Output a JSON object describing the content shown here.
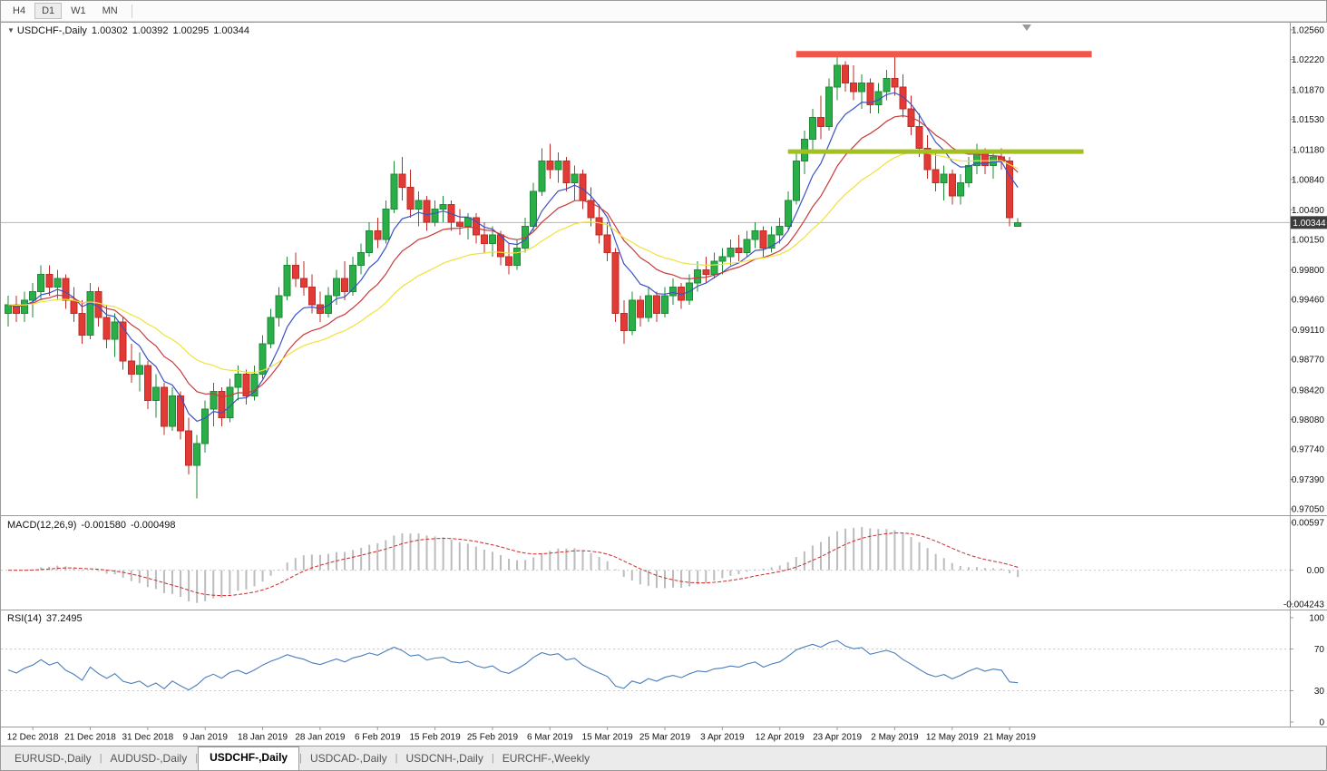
{
  "toolbar": {
    "buttons": [
      {
        "label": "H4",
        "active": false
      },
      {
        "label": "D1",
        "active": true
      },
      {
        "label": "W1",
        "active": false
      },
      {
        "label": "MN",
        "active": false
      }
    ]
  },
  "chart_header": {
    "marker": "▼",
    "symbol": "USDCHF-,Daily",
    "open": "1.00302",
    "high": "1.00392",
    "low": "1.00295",
    "close": "1.00344"
  },
  "indicators": {
    "macd": {
      "name": "MACD(12,26,9)",
      "main_value": "-0.001580",
      "signal_value": "-0.000498"
    },
    "rsi": {
      "name": "RSI(14)",
      "value": "37.2495"
    }
  },
  "tabs": [
    {
      "label": "EURUSD-,Daily",
      "active": false
    },
    {
      "label": "AUDUSD-,Daily",
      "active": false
    },
    {
      "label": "USDCHF-,Daily",
      "active": true
    },
    {
      "label": "USDCAD-,Daily",
      "active": false
    },
    {
      "label": "USDCNH-,Daily",
      "active": false
    },
    {
      "label": "EURCHF-,Weekly",
      "active": false
    }
  ],
  "chart_data": {
    "type": "candlestick",
    "symbol": "USDCHF",
    "timeframe": "Daily",
    "price_axis": {
      "min": 0.9702,
      "max": 1.0259,
      "labels": [
        "1.02560",
        "1.02220",
        "1.01870",
        "1.01530",
        "1.01180",
        "1.00840",
        "1.00490",
        "1.00150",
        "0.99800",
        "0.99460",
        "0.99110",
        "0.98770",
        "0.98420",
        "0.98080",
        "0.97740",
        "0.97390",
        "0.97050"
      ]
    },
    "date_axis": {
      "first_index": 3,
      "step": 7,
      "labels": [
        "12 Dec 2018",
        "21 Dec 2018",
        "31 Dec 2018",
        "9 Jan 2019",
        "18 Jan 2019",
        "28 Jan 2019",
        "6 Feb 2019",
        "15 Feb 2019",
        "25 Feb 2019",
        "6 Mar 2019",
        "15 Mar 2019",
        "25 Mar 2019",
        "3 Apr 2019",
        "12 Apr 2019",
        "23 Apr 2019",
        "2 May 2019",
        "12 May 2019",
        "21 May 2019"
      ]
    },
    "ohlc": [
      [
        0.993,
        0.995,
        0.9915,
        0.994
      ],
      [
        0.994,
        0.995,
        0.992,
        0.993
      ],
      [
        0.993,
        0.9955,
        0.992,
        0.9945
      ],
      [
        0.9945,
        0.9965,
        0.9925,
        0.9955
      ],
      [
        0.9955,
        0.9985,
        0.9945,
        0.9975
      ],
      [
        0.9975,
        0.9985,
        0.995,
        0.996
      ],
      [
        0.996,
        0.998,
        0.9945,
        0.997
      ],
      [
        0.997,
        0.9975,
        0.9935,
        0.9945
      ],
      [
        0.9945,
        0.996,
        0.992,
        0.993
      ],
      [
        0.993,
        0.9945,
        0.9895,
        0.9905
      ],
      [
        0.9905,
        0.9965,
        0.99,
        0.9955
      ],
      [
        0.9955,
        0.996,
        0.9915,
        0.9925
      ],
      [
        0.9925,
        0.994,
        0.989,
        0.99
      ],
      [
        0.99,
        0.993,
        0.988,
        0.992
      ],
      [
        0.992,
        0.9925,
        0.9865,
        0.9875
      ],
      [
        0.9875,
        0.9895,
        0.985,
        0.986
      ],
      [
        0.986,
        0.9885,
        0.984,
        0.987
      ],
      [
        0.987,
        0.9875,
        0.982,
        0.983
      ],
      [
        0.983,
        0.986,
        0.981,
        0.9845
      ],
      [
        0.9845,
        0.985,
        0.979,
        0.98
      ],
      [
        0.98,
        0.9845,
        0.9795,
        0.9835
      ],
      [
        0.9835,
        0.984,
        0.9785,
        0.9795
      ],
      [
        0.9795,
        0.981,
        0.9745,
        0.9755
      ],
      [
        0.9755,
        0.979,
        0.9717,
        0.978
      ],
      [
        0.978,
        0.983,
        0.977,
        0.982
      ],
      [
        0.982,
        0.985,
        0.98,
        0.984
      ],
      [
        0.984,
        0.9845,
        0.98,
        0.981
      ],
      [
        0.981,
        0.9855,
        0.9805,
        0.9845
      ],
      [
        0.9845,
        0.987,
        0.983,
        0.986
      ],
      [
        0.986,
        0.9865,
        0.9825,
        0.9835
      ],
      [
        0.9835,
        0.987,
        0.983,
        0.986
      ],
      [
        0.986,
        0.9905,
        0.9855,
        0.9895
      ],
      [
        0.9895,
        0.9935,
        0.989,
        0.9925
      ],
      [
        0.9925,
        0.996,
        0.9915,
        0.995
      ],
      [
        0.995,
        0.9995,
        0.9945,
        0.9985
      ],
      [
        0.9985,
        1.0,
        0.996,
        0.997
      ],
      [
        0.997,
        0.999,
        0.995,
        0.996
      ],
      [
        0.996,
        0.9975,
        0.993,
        0.994
      ],
      [
        0.994,
        0.9955,
        0.992,
        0.993
      ],
      [
        0.993,
        0.996,
        0.9925,
        0.995
      ],
      [
        0.995,
        0.998,
        0.994,
        0.997
      ],
      [
        0.997,
        0.999,
        0.9945,
        0.9955
      ],
      [
        0.9955,
        0.9995,
        0.995,
        0.9985
      ],
      [
        0.9985,
        1.001,
        0.9975,
        1.0
      ],
      [
        1.0,
        1.0035,
        0.9995,
        1.0025
      ],
      [
        1.0025,
        1.004,
        1.0005,
        1.0015
      ],
      [
        1.0015,
        1.006,
        1.001,
        1.005
      ],
      [
        1.005,
        1.0105,
        1.0045,
        1.009
      ],
      [
        1.009,
        1.011,
        1.006,
        1.0075
      ],
      [
        1.0075,
        1.0095,
        1.004,
        1.005
      ],
      [
        1.005,
        1.007,
        1.003,
        1.006
      ],
      [
        1.006,
        1.0065,
        1.0025,
        1.0035
      ],
      [
        1.0035,
        1.006,
        1.003,
        1.005
      ],
      [
        1.005,
        1.0065,
        1.0035,
        1.0055
      ],
      [
        1.0055,
        1.006,
        1.0025,
        1.0035
      ],
      [
        1.0035,
        1.005,
        1.002,
        1.003
      ],
      [
        1.003,
        1.0045,
        1.0015,
        1.004
      ],
      [
        1.004,
        1.0045,
        1.001,
        1.002
      ],
      [
        1.002,
        1.0035,
        1.0,
        1.001
      ],
      [
        1.001,
        1.003,
        0.9995,
        1.002
      ],
      [
        1.002,
        1.0025,
        0.9985,
        0.9995
      ],
      [
        0.9995,
        1.001,
        0.9975,
        0.9985
      ],
      [
        0.9985,
        1.0015,
        0.998,
        1.0005
      ],
      [
        1.0005,
        1.004,
        1.0,
        1.003
      ],
      [
        1.003,
        1.008,
        1.0025,
        1.007
      ],
      [
        1.007,
        1.012,
        1.0065,
        1.0105
      ],
      [
        1.0105,
        1.0125,
        1.0085,
        1.0095
      ],
      [
        1.0095,
        1.0115,
        1.008,
        1.0105
      ],
      [
        1.0105,
        1.011,
        1.007,
        1.008
      ],
      [
        1.008,
        1.01,
        1.006,
        1.009
      ],
      [
        1.009,
        1.0095,
        1.005,
        1.006
      ],
      [
        1.006,
        1.0075,
        1.003,
        1.004
      ],
      [
        1.004,
        1.0055,
        1.001,
        1.002
      ],
      [
        1.002,
        1.0035,
        0.999,
        1.0
      ],
      [
        1.0,
        1.0005,
        0.992,
        0.993
      ],
      [
        0.993,
        0.9945,
        0.9895,
        0.991
      ],
      [
        0.991,
        0.9955,
        0.9905,
        0.9945
      ],
      [
        0.9945,
        0.995,
        0.9915,
        0.9925
      ],
      [
        0.9925,
        0.996,
        0.992,
        0.995
      ],
      [
        0.995,
        0.9955,
        0.992,
        0.993
      ],
      [
        0.993,
        0.996,
        0.9925,
        0.995
      ],
      [
        0.995,
        0.997,
        0.994,
        0.996
      ],
      [
        0.996,
        0.9965,
        0.9935,
        0.9945
      ],
      [
        0.9945,
        0.9975,
        0.994,
        0.9965
      ],
      [
        0.9965,
        0.999,
        0.9955,
        0.998
      ],
      [
        0.998,
        0.9995,
        0.9965,
        0.9975
      ],
      [
        0.9975,
        1.0,
        0.997,
        0.999
      ],
      [
        0.999,
        1.0005,
        0.9975,
        0.9995
      ],
      [
        0.9995,
        1.0015,
        0.9985,
        1.0005
      ],
      [
        1.0005,
        1.002,
        0.999,
        1.0
      ],
      [
        1.0,
        1.0025,
        0.9995,
        1.0015
      ],
      [
        1.0015,
        1.0035,
        1.0005,
        1.0025
      ],
      [
        1.0025,
        1.003,
        0.9995,
        1.0005
      ],
      [
        1.0005,
        1.003,
        1.0,
        1.002
      ],
      [
        1.002,
        1.004,
        1.001,
        1.003
      ],
      [
        1.003,
        1.007,
        1.0025,
        1.006
      ],
      [
        1.006,
        1.0115,
        1.0055,
        1.0105
      ],
      [
        1.0105,
        1.014,
        1.009,
        1.013
      ],
      [
        1.013,
        1.0165,
        1.0115,
        1.0155
      ],
      [
        1.0155,
        1.018,
        1.013,
        1.0145
      ],
      [
        1.0145,
        1.02,
        1.014,
        1.019
      ],
      [
        1.019,
        1.0225,
        1.0175,
        1.0215
      ],
      [
        1.0215,
        1.022,
        1.0185,
        1.0195
      ],
      [
        1.0195,
        1.0215,
        1.0175,
        1.0185
      ],
      [
        1.0185,
        1.0205,
        1.0165,
        1.0195
      ],
      [
        1.0195,
        1.02,
        1.016,
        1.017
      ],
      [
        1.017,
        1.0195,
        1.016,
        1.0185
      ],
      [
        1.0185,
        1.021,
        1.0175,
        1.02
      ],
      [
        1.02,
        1.0225,
        1.018,
        1.019
      ],
      [
        1.019,
        1.0205,
        1.0155,
        1.0165
      ],
      [
        1.0165,
        1.018,
        1.0135,
        1.0145
      ],
      [
        1.0145,
        1.016,
        1.011,
        1.012
      ],
      [
        1.012,
        1.0135,
        1.0085,
        1.0095
      ],
      [
        1.0095,
        1.0115,
        1.007,
        1.008
      ],
      [
        1.008,
        1.01,
        1.006,
        1.009
      ],
      [
        1.009,
        1.0095,
        1.0055,
        1.0065
      ],
      [
        1.0065,
        1.009,
        1.0055,
        1.008
      ],
      [
        1.008,
        1.011,
        1.0075,
        1.01
      ],
      [
        1.01,
        1.0125,
        1.009,
        1.0115
      ],
      [
        1.0115,
        1.012,
        1.009,
        1.01
      ],
      [
        1.01,
        1.0115,
        1.0085,
        1.011
      ],
      [
        1.011,
        1.012,
        1.0095,
        1.0105
      ],
      [
        1.0105,
        1.011,
        1.003,
        1.004
      ],
      [
        1.00302,
        1.00392,
        1.00295,
        1.00344
      ]
    ],
    "overlays": [
      {
        "name": "ma-fast-line",
        "type": "ema",
        "period": 7,
        "color": "#3a51c6"
      },
      {
        "name": "ma-mid-line",
        "type": "ema",
        "period": 14,
        "color": "#c93a3a"
      },
      {
        "name": "ma-slow-line",
        "type": "ema",
        "period": 28,
        "color": "#efe23a"
      }
    ],
    "hlines": [
      {
        "name": "resistance-line",
        "price": 1.0228,
        "from_index": 96,
        "to_index": 132,
        "color": "#f2554b",
        "width": 7
      },
      {
        "name": "support-line",
        "price": 1.0116,
        "from_index": 95,
        "to_index": 131,
        "color": "#a2c01e",
        "width": 5
      }
    ],
    "current_price": {
      "value": 1.00344,
      "label": "1.00344"
    },
    "macd": {
      "params": [
        12,
        26,
        9
      ],
      "max": 0.00597,
      "min": -0.004243,
      "axis_labels": [
        "0.00597",
        "0.00",
        "-0.004243"
      ],
      "histogram_color": "#bcbcbc",
      "signal_color": "#cc2a2a"
    },
    "rsi": {
      "period": 14,
      "levels": [
        70,
        30
      ],
      "axis_labels": [
        "100",
        "70",
        "30",
        "0"
      ],
      "color": "#4a7ebb"
    },
    "style": {
      "up": "#2aae48",
      "up_border": "#1d8a36",
      "down": "#e23b35",
      "down_border": "#bf2b26",
      "price_line": "#b4b4b4",
      "frame": "#9a9a9a",
      "grid": "#c9c9c9"
    }
  }
}
